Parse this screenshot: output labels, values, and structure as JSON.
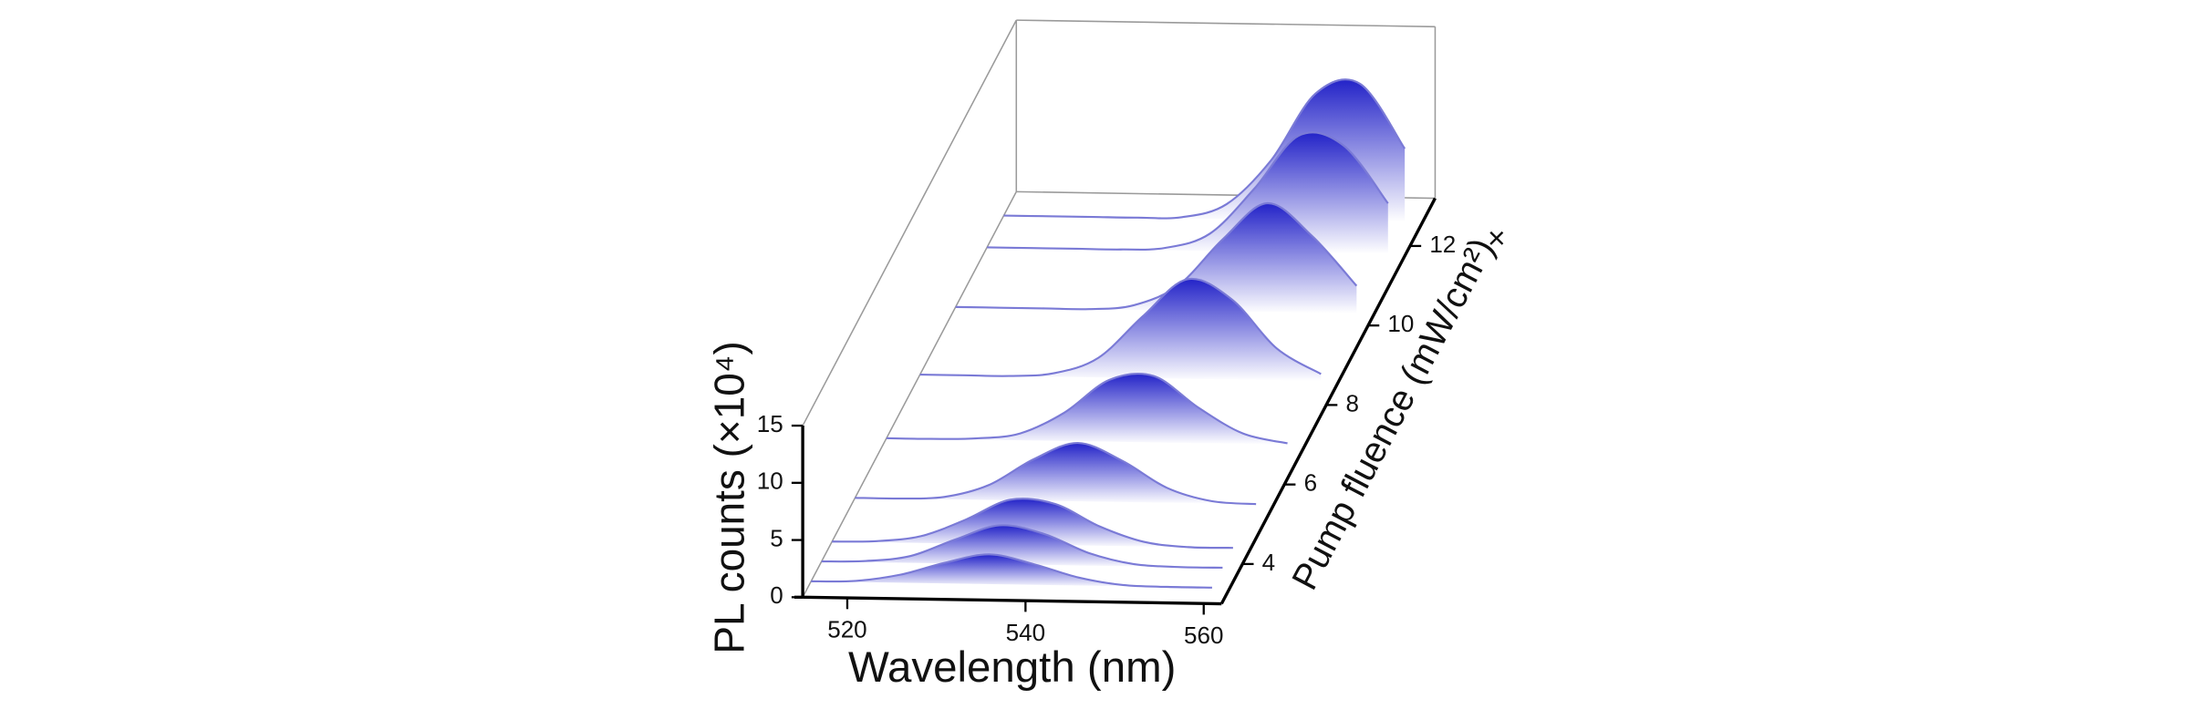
{
  "close_button": "×",
  "chart_data": {
    "type": "waterfall",
    "xlabel": "Wavelength (nm)",
    "ylabel": "PL counts (×10⁴)",
    "zlabel": "Pump fluence (mW/cm²)",
    "x": [
      515,
      520,
      525,
      530,
      535,
      540,
      545,
      550,
      555,
      560
    ],
    "xlim": [
      515,
      562
    ],
    "xticks": [
      520,
      540,
      560
    ],
    "ylim": [
      0,
      15
    ],
    "yticks": [
      0,
      5,
      10,
      15
    ],
    "zlim": [
      3,
      13.2
    ],
    "zticks": [
      4,
      6,
      8,
      10,
      12
    ],
    "color": "#2323c8",
    "line_color": "#7a7ad6",
    "series": [
      {
        "z": 3.4,
        "values": [
          0,
          0.1,
          0.7,
          1.8,
          2.6,
          1.8,
          0.7,
          0.1,
          0,
          0
        ]
      },
      {
        "z": 3.9,
        "values": [
          0,
          0.1,
          0.6,
          2.1,
          3.4,
          2.7,
          1.1,
          0.2,
          0,
          0
        ]
      },
      {
        "z": 4.4,
        "values": [
          0,
          0.1,
          0.6,
          2.1,
          3.9,
          3.6,
          1.7,
          0.4,
          0,
          0
        ]
      },
      {
        "z": 5.5,
        "values": [
          0,
          0,
          0.2,
          1.3,
          3.6,
          5.1,
          3.6,
          1.3,
          0.2,
          0
        ]
      },
      {
        "z": 7,
        "values": [
          0,
          0,
          0.1,
          0.6,
          2.5,
          5.4,
          5.8,
          3.1,
          0.9,
          0.1
        ]
      },
      {
        "z": 8.6,
        "values": [
          0,
          0,
          0,
          0.3,
          1.7,
          5.4,
          8.7,
          7.0,
          2.8,
          0.6
        ]
      },
      {
        "z": 10.3,
        "values": [
          0,
          0,
          0,
          0,
          0.4,
          2.2,
          6.3,
          9.5,
          6.7,
          2.4
        ]
      },
      {
        "z": 11.8,
        "values": [
          0,
          0,
          0,
          0,
          0.2,
          1.5,
          5.5,
          10.2,
          9.4,
          4.4
        ]
      },
      {
        "z": 12.6,
        "values": [
          0,
          0,
          0,
          0,
          0.1,
          1.3,
          5.2,
          11.1,
          12.0,
          6.4
        ]
      }
    ]
  }
}
